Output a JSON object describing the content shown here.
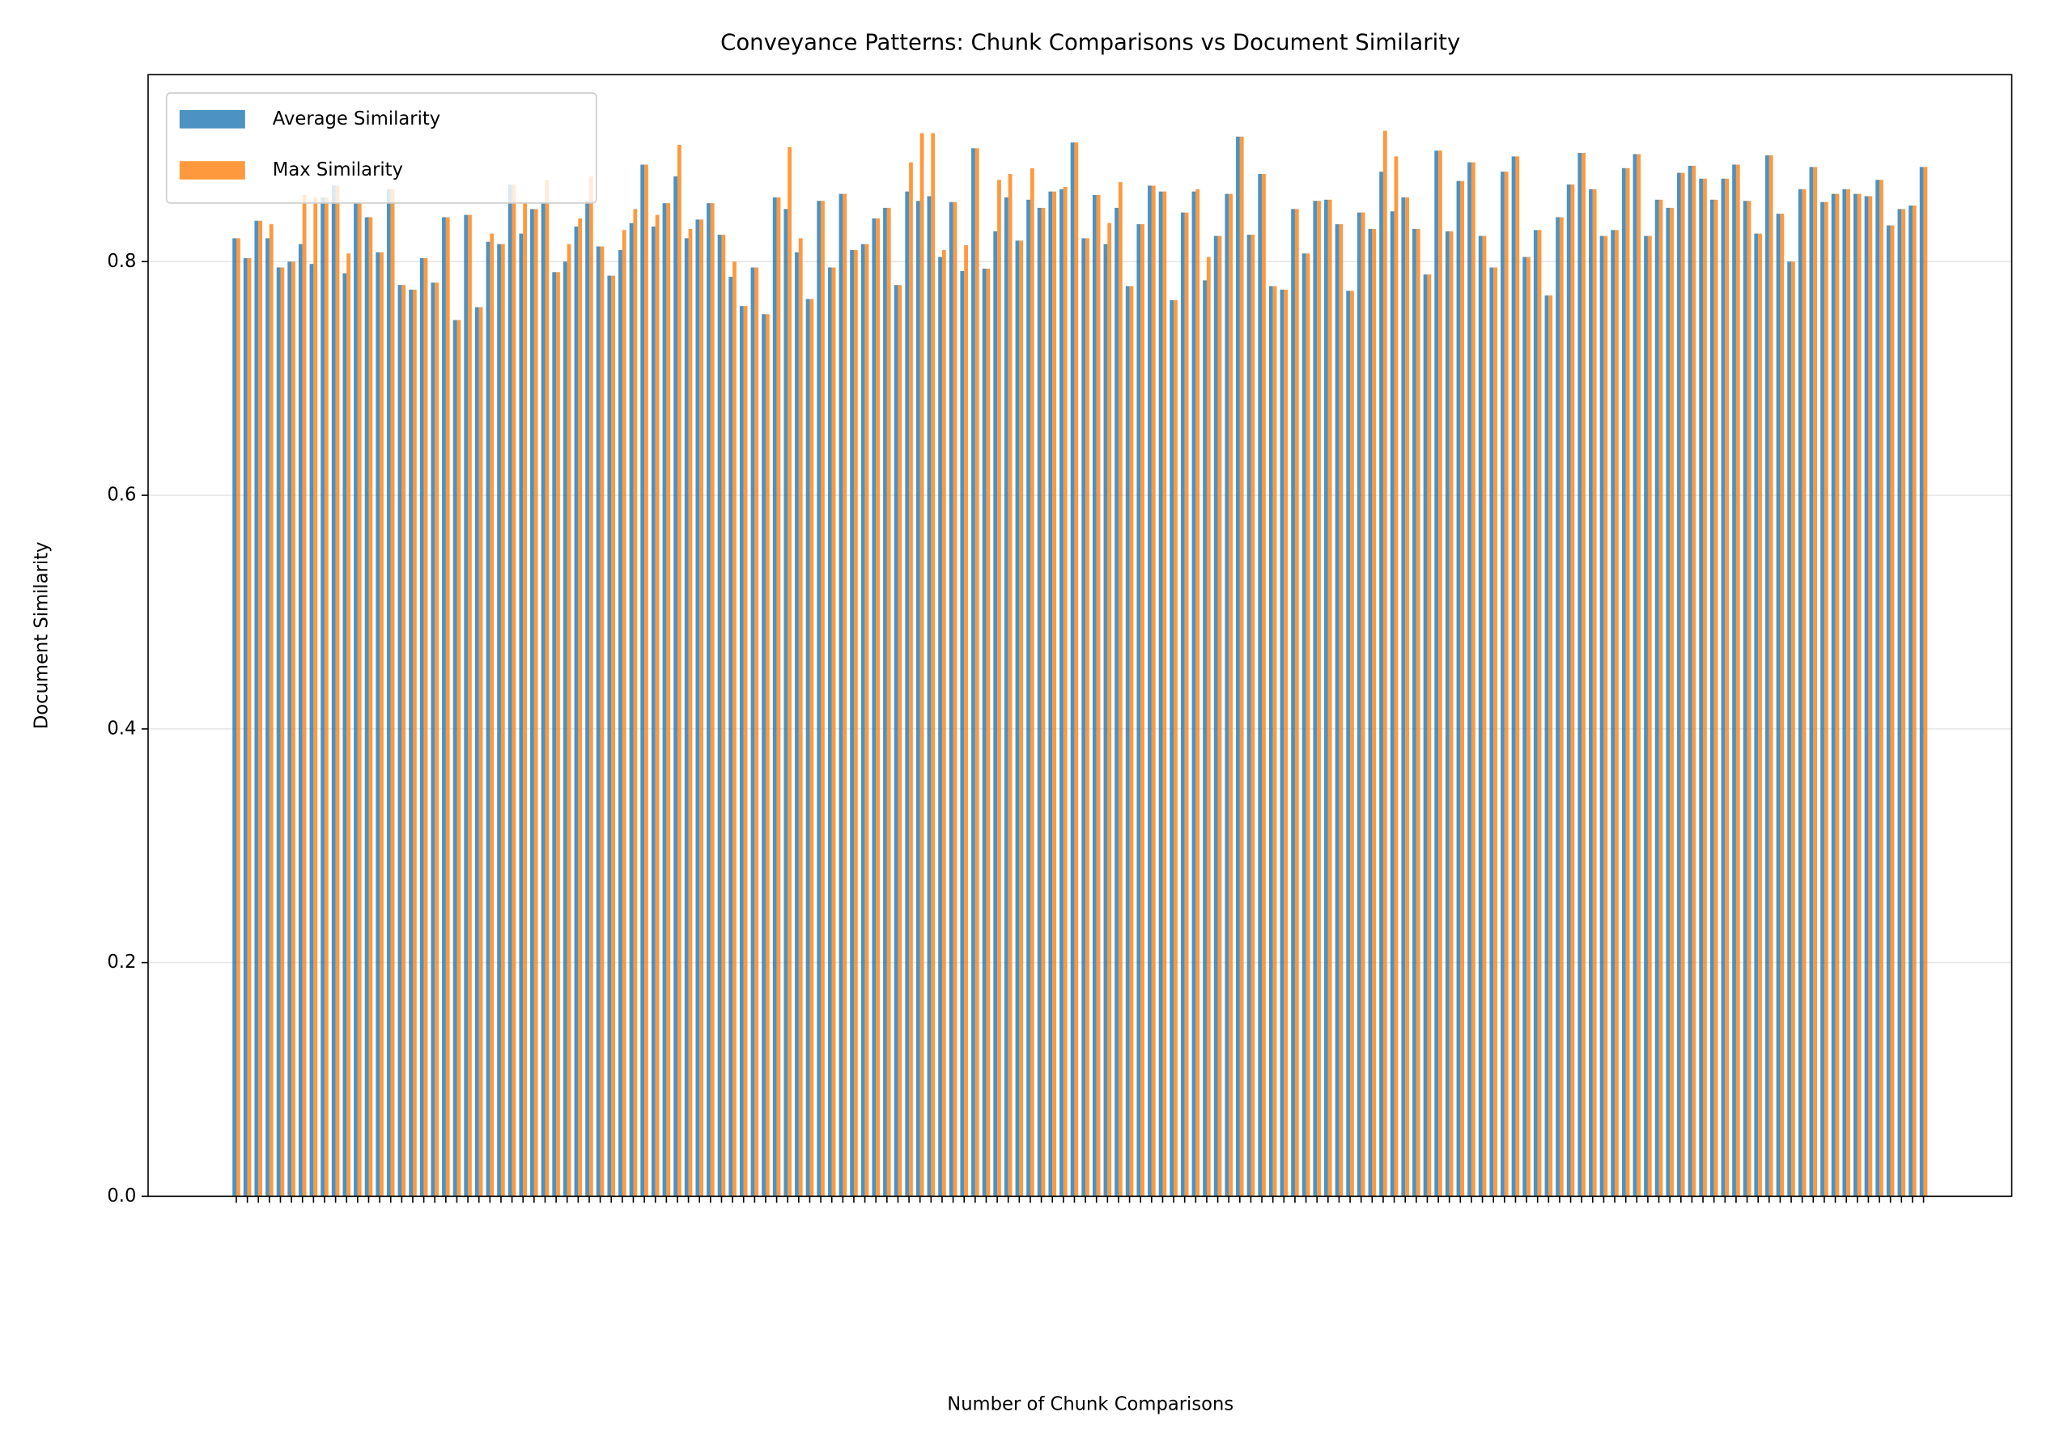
{
  "chart_data": {
    "type": "bar",
    "title": "Conveyance Patterns: Chunk Comparisons vs Document Similarity",
    "xlabel": "Number of Chunk Comparisons",
    "ylabel": "Document Similarity",
    "categories": [
      null,
      null,
      null,
      null,
      null,
      null,
      null,
      null,
      null,
      null,
      null,
      null,
      null,
      null,
      null,
      null,
      null,
      null,
      null,
      null,
      null,
      null,
      null,
      null,
      null,
      null,
      null,
      null,
      null,
      null,
      null,
      null,
      null,
      null,
      null,
      null,
      null,
      null,
      null,
      null,
      null,
      null,
      null,
      null,
      null,
      null,
      null,
      null,
      null,
      null,
      null,
      null,
      null,
      null,
      null,
      null,
      null,
      null,
      null,
      null,
      null,
      null,
      null,
      null,
      null,
      null,
      null,
      null,
      null,
      null,
      null,
      null,
      null,
      null,
      null,
      null,
      null,
      null,
      null,
      null,
      null,
      null,
      null,
      null,
      null,
      null,
      null,
      null,
      null,
      null,
      null,
      null,
      null,
      null,
      null,
      null,
      null,
      null,
      null,
      null,
      null,
      null,
      null,
      null,
      null,
      null,
      null,
      null,
      null,
      null,
      null,
      null,
      null,
      null,
      null,
      null,
      null,
      null,
      null,
      null,
      null,
      null,
      null,
      null,
      null,
      null,
      null,
      null,
      null,
      null,
      null,
      null,
      null,
      null,
      null,
      null,
      null,
      null,
      null,
      null,
      null,
      null,
      null,
      null,
      null,
      null,
      null,
      null,
      null,
      null,
      null,
      null,
      null,
      null
    ],
    "series": [
      {
        "name": "Average Similarity",
        "color": "#1f77b4",
        "values": [
          0.82,
          0.803,
          0.835,
          0.82,
          0.795,
          0.8,
          0.815,
          0.798,
          0.855,
          0.865,
          0.79,
          0.85,
          0.838,
          0.808,
          0.862,
          0.78,
          0.776,
          0.803,
          0.782,
          0.838,
          0.75,
          0.84,
          0.761,
          0.817,
          0.815,
          0.866,
          0.824,
          0.845,
          0.85,
          0.791,
          0.8,
          0.83,
          0.852,
          0.813,
          0.788,
          0.81,
          0.833,
          0.883,
          0.83,
          0.85,
          0.873,
          0.82,
          0.836,
          0.85,
          0.823,
          0.787,
          0.762,
          0.795,
          0.755,
          0.855,
          0.845,
          0.808,
          0.768,
          0.852,
          0.795,
          0.858,
          0.81,
          0.815,
          0.837,
          0.846,
          0.78,
          0.86,
          0.852,
          0.856,
          0.804,
          0.851,
          0.792,
          0.897,
          0.794,
          0.826,
          0.855,
          0.818,
          0.853,
          0.846,
          0.86,
          0.862,
          0.902,
          0.82,
          0.857,
          0.815,
          0.846,
          0.779,
          0.832,
          0.865,
          0.86,
          0.767,
          0.842,
          0.86,
          0.784,
          0.822,
          0.858,
          0.907,
          0.823,
          0.875,
          0.779,
          0.776,
          0.845,
          0.807,
          0.852,
          0.853,
          0.832,
          0.775,
          0.842,
          0.828,
          0.877,
          0.843,
          0.855,
          0.828,
          0.789,
          0.895,
          0.826,
          0.869,
          0.885,
          0.822,
          0.795,
          0.877,
          0.89,
          0.804,
          0.827,
          0.771,
          0.838,
          0.866,
          0.893,
          0.862,
          0.822,
          0.827,
          0.88,
          0.892,
          0.822,
          0.853,
          0.846,
          0.876,
          0.882,
          0.871,
          0.853,
          0.871,
          0.883,
          0.852,
          0.824,
          0.891,
          0.841,
          0.8,
          0.862,
          0.881,
          0.851,
          0.858,
          0.862,
          0.858,
          0.856,
          0.87,
          0.831,
          0.845,
          0.848,
          0.881
        ]
      },
      {
        "name": "Max Similarity",
        "color": "#ff7f0e",
        "values": [
          0.82,
          0.803,
          0.835,
          0.832,
          0.795,
          0.8,
          0.857,
          0.855,
          0.855,
          0.865,
          0.807,
          0.85,
          0.838,
          0.808,
          0.862,
          0.78,
          0.776,
          0.803,
          0.782,
          0.838,
          0.75,
          0.84,
          0.761,
          0.824,
          0.815,
          0.866,
          0.85,
          0.845,
          0.87,
          0.791,
          0.815,
          0.837,
          0.873,
          0.813,
          0.788,
          0.827,
          0.845,
          0.883,
          0.84,
          0.85,
          0.9,
          0.828,
          0.836,
          0.85,
          0.823,
          0.8,
          0.762,
          0.795,
          0.755,
          0.855,
          0.898,
          0.82,
          0.768,
          0.852,
          0.795,
          0.858,
          0.81,
          0.815,
          0.837,
          0.846,
          0.78,
          0.885,
          0.91,
          0.91,
          0.81,
          0.851,
          0.814,
          0.897,
          0.794,
          0.87,
          0.875,
          0.818,
          0.88,
          0.846,
          0.86,
          0.864,
          0.902,
          0.82,
          0.857,
          0.833,
          0.868,
          0.779,
          0.832,
          0.865,
          0.86,
          0.767,
          0.842,
          0.862,
          0.804,
          0.822,
          0.858,
          0.907,
          0.823,
          0.875,
          0.779,
          0.776,
          0.845,
          0.807,
          0.852,
          0.853,
          0.832,
          0.775,
          0.842,
          0.828,
          0.912,
          0.89,
          0.855,
          0.828,
          0.789,
          0.895,
          0.826,
          0.869,
          0.885,
          0.822,
          0.795,
          0.877,
          0.89,
          0.804,
          0.827,
          0.771,
          0.838,
          0.866,
          0.893,
          0.862,
          0.822,
          0.827,
          0.88,
          0.892,
          0.822,
          0.853,
          0.846,
          0.876,
          0.882,
          0.871,
          0.853,
          0.871,
          0.883,
          0.852,
          0.824,
          0.891,
          0.841,
          0.8,
          0.862,
          0.881,
          0.851,
          0.858,
          0.862,
          0.858,
          0.856,
          0.87,
          0.831,
          0.845,
          0.848,
          0.881
        ]
      }
    ],
    "ylim": [
      0,
      0.96
    ],
    "yticks": [
      {
        "value": 0,
        "label": "0.0"
      },
      0.2,
      0.4,
      0.6,
      0.8
    ],
    "grid": true,
    "legend": "upper left"
  }
}
